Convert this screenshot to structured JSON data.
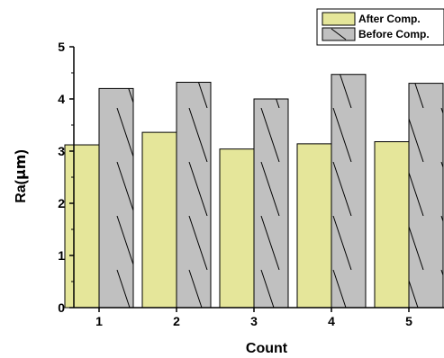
{
  "chart_data": {
    "type": "bar",
    "categories": [
      "1",
      "2",
      "3",
      "4",
      "5"
    ],
    "series": [
      {
        "name": "After Comp.",
        "values": [
          3.12,
          3.36,
          3.04,
          3.14,
          3.18
        ],
        "color": "#e5e69a",
        "pattern": "solid"
      },
      {
        "name": "Before Comp.",
        "values": [
          4.2,
          4.32,
          4.0,
          4.47,
          4.3
        ],
        "color": "#c0c0c0",
        "pattern": "diagonal-hatch"
      }
    ],
    "xlabel": "Count",
    "ylabel": "Ra(",
    "ylabel_symbol": "μm",
    "ylabel_end": ")",
    "ylim": [
      0,
      5
    ],
    "yticks": [
      "0",
      "1",
      "2",
      "3",
      "4",
      "5"
    ],
    "legend_position": "top-right",
    "grid": false
  }
}
